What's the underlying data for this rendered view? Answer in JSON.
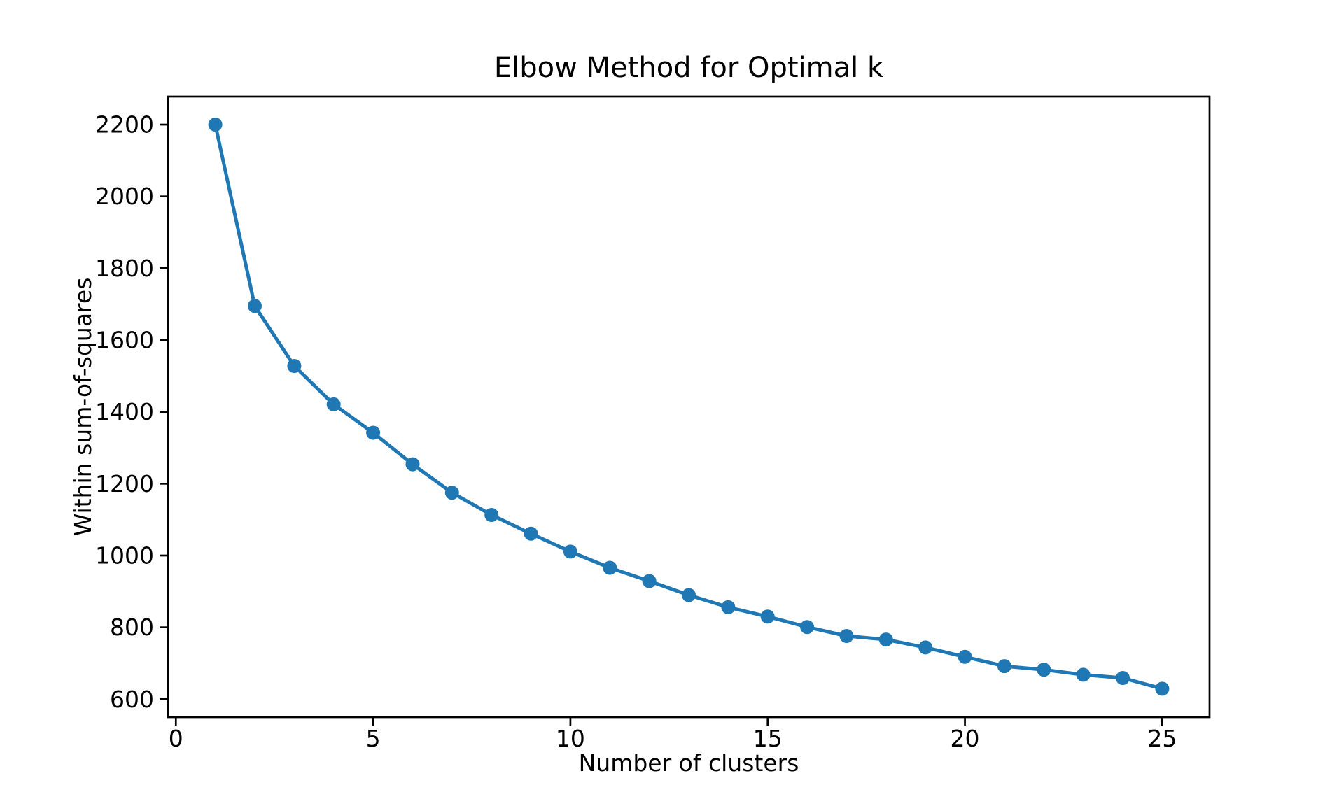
{
  "figure": {
    "background": "#ffffff"
  },
  "chart_data": {
    "type": "line",
    "title": "Elbow Method for Optimal k",
    "xlabel": "Number of clusters",
    "ylabel": "Within sum-of-squares",
    "series": [
      {
        "name": "within-sum-of-squares",
        "x": [
          1,
          2,
          3,
          4,
          5,
          6,
          7,
          8,
          9,
          10,
          11,
          12,
          13,
          14,
          15,
          16,
          17,
          18,
          19,
          20,
          21,
          22,
          23,
          24,
          25
        ],
        "y": [
          2200,
          1695,
          1528,
          1421,
          1342,
          1254,
          1175,
          1113,
          1061,
          1011,
          966,
          929,
          890,
          856,
          830,
          801,
          776,
          766,
          744,
          718,
          692,
          682,
          668,
          659,
          629
        ],
        "line_color": "#1f77b4",
        "marker": "circle",
        "marker_color": "#1f77b4"
      }
    ],
    "xlim": [
      -0.2,
      26.2
    ],
    "ylim": [
      550,
      2278
    ],
    "xticks": [
      0,
      5,
      10,
      15,
      20,
      25
    ],
    "yticks": [
      600,
      800,
      1000,
      1200,
      1400,
      1600,
      1800,
      2000,
      2200
    ],
    "grid": false,
    "legend": null,
    "text_color": "#000000",
    "spine_color": "#000000"
  }
}
